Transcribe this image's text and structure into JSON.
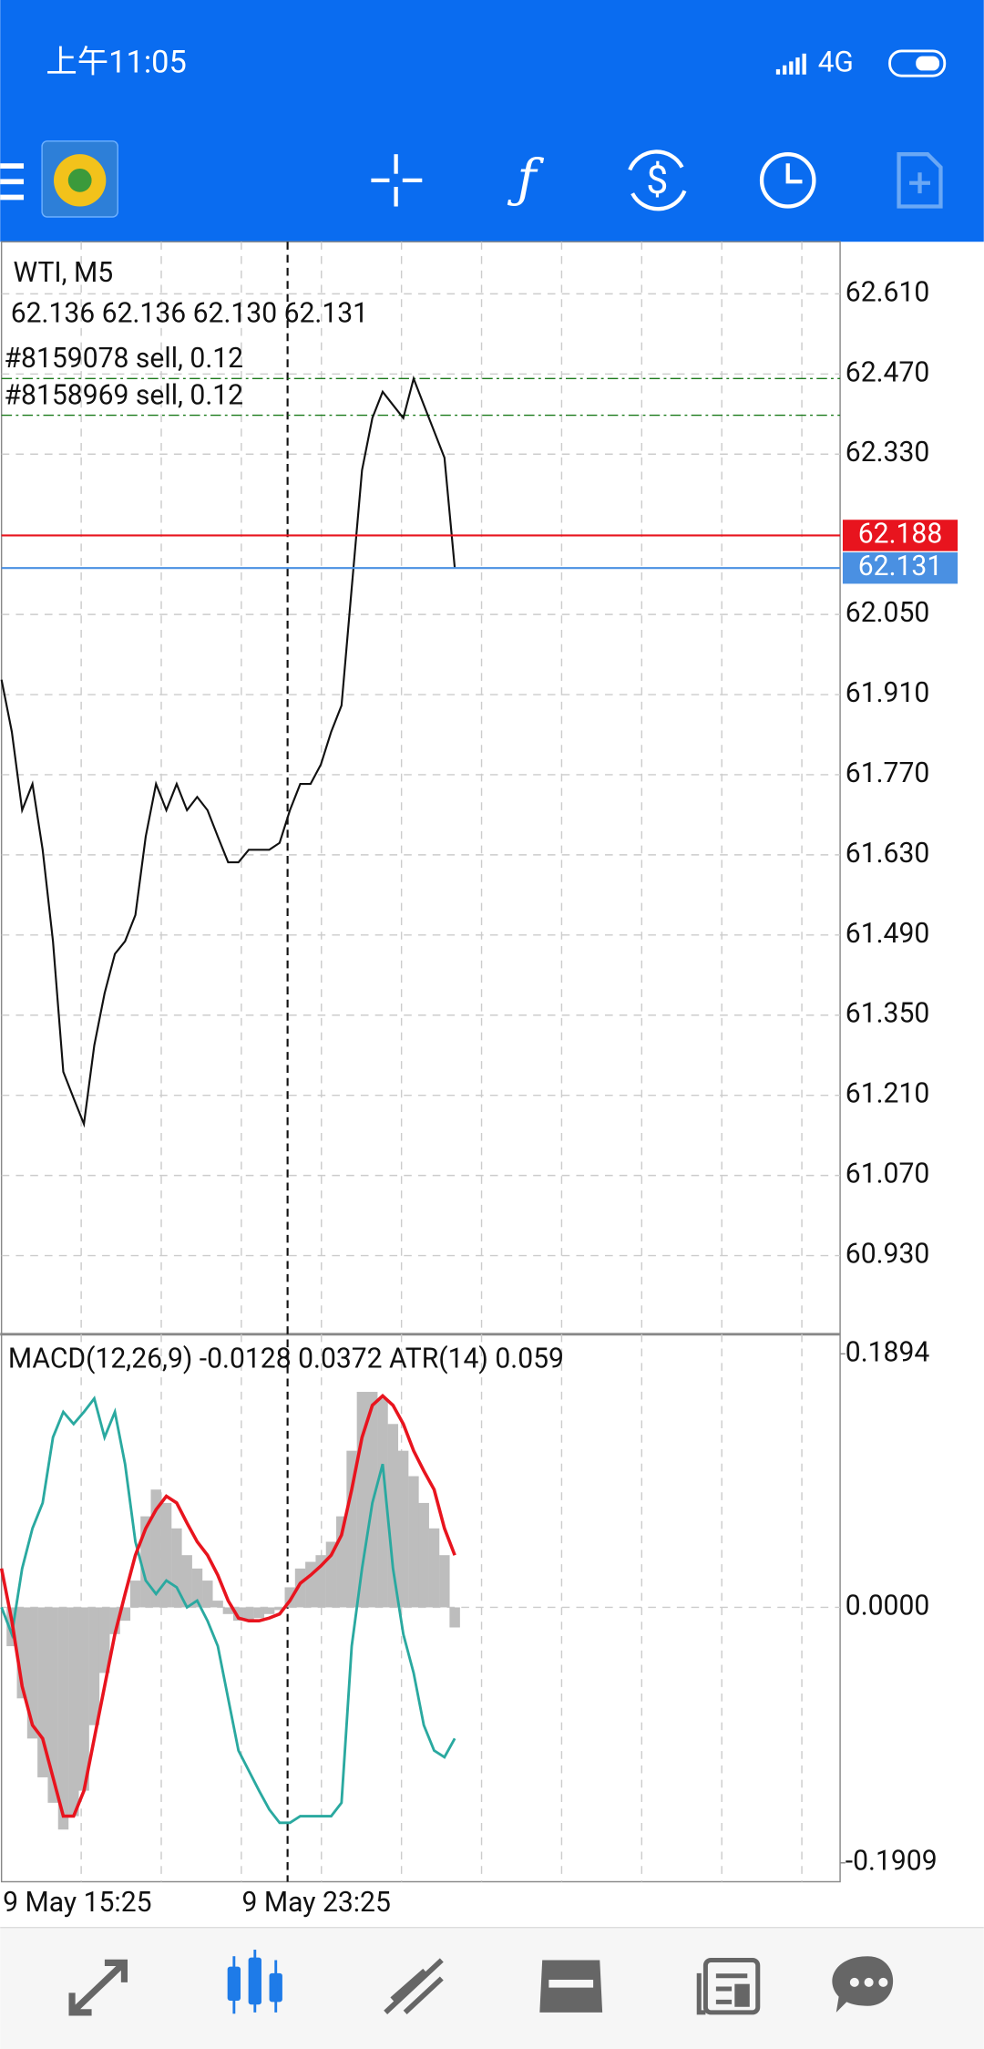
{
  "status_bar": {
    "time": "上午11:05",
    "network": "4G"
  },
  "chart": {
    "symbol": "WTI, M5",
    "ohlc": "62.136 62.136 62.130 62.131",
    "orders": [
      {
        "label": "#8159078 sell, 0.12",
        "price": 62.462
      },
      {
        "label": "#8158969 sell, 0.12",
        "price": 62.398
      }
    ],
    "bid": {
      "value": 62.188,
      "color": "#e8141e"
    },
    "ask": {
      "value": 62.131,
      "color": "#4a90e2"
    },
    "ylim": [
      60.795,
      62.701
    ],
    "yticks": [
      {
        "value": 62.61,
        "label": "62.610"
      },
      {
        "value": 62.47,
        "label": "62.470"
      },
      {
        "value": 62.33,
        "label": "62.330"
      },
      {
        "value": 62.05,
        "label": "62.050"
      },
      {
        "value": 61.91,
        "label": "61.910"
      },
      {
        "value": 61.77,
        "label": "61.770"
      },
      {
        "value": 61.63,
        "label": "61.630"
      },
      {
        "value": 61.49,
        "label": "61.490"
      },
      {
        "value": 61.35,
        "label": "61.350"
      },
      {
        "value": 61.21,
        "label": "61.210"
      },
      {
        "value": 61.07,
        "label": "61.070"
      },
      {
        "value": 60.93,
        "label": "60.930"
      }
    ],
    "close": {
      "color": "#111111",
      "values": [
        61.936,
        61.845,
        61.708,
        61.754,
        61.639,
        61.479,
        61.251,
        61.205,
        61.16,
        61.297,
        61.388,
        61.457,
        61.479,
        61.525,
        61.662,
        61.754,
        61.708,
        61.754,
        61.708,
        61.731,
        61.708,
        61.662,
        61.617,
        61.617,
        61.639,
        61.639,
        61.639,
        61.651,
        61.708,
        61.754,
        61.754,
        61.788,
        61.845,
        61.891,
        62.096,
        62.302,
        62.393,
        62.439,
        62.416,
        62.393,
        62.462,
        62.416,
        62.37,
        62.324,
        62.131
      ]
    },
    "macd_label": "MACD(12,26,9) -0.0128 0.0372 ATR(14) 0.059",
    "macd_ylim": [
      -0.205,
      0.2031
    ],
    "macd_yticks": [
      0.1894,
      {
        "value": 0,
        "label": "0.0000"
      },
      -0.1909
    ],
    "macd_histogram": {
      "color": "#bdbdbd",
      "values": [
        0,
        -0.029,
        -0.068,
        -0.098,
        -0.127,
        -0.146,
        -0.166,
        -0.156,
        -0.137,
        -0.088,
        -0.049,
        -0.02,
        -0.01,
        0.02,
        0.068,
        0.088,
        0.078,
        0.059,
        0.039,
        0.029,
        0.02,
        0.005,
        -0.005,
        -0.01,
        -0.01,
        -0.008,
        -0.005,
        -0.002,
        0.015,
        0.029,
        0.034,
        0.039,
        0.049,
        0.068,
        0.117,
        0.161,
        0.161,
        0.156,
        0.137,
        0.117,
        0.098,
        0.078,
        0.059,
        0.039,
        -0.015
      ]
    },
    "macd_signal": {
      "color": "#e8141e",
      "values": [
        0.029,
        -0.01,
        -0.059,
        -0.088,
        -0.098,
        -0.127,
        -0.156,
        -0.156,
        -0.137,
        -0.098,
        -0.059,
        -0.02,
        0.01,
        0.039,
        0.059,
        0.073,
        0.083,
        0.078,
        0.063,
        0.049,
        0.039,
        0.024,
        0.005,
        -0.008,
        -0.01,
        -0.01,
        -0.008,
        -0.005,
        0.005,
        0.018,
        0.024,
        0.031,
        0.039,
        0.054,
        0.088,
        0.127,
        0.151,
        0.158,
        0.151,
        0.137,
        0.117,
        0.102,
        0.088,
        0.059,
        0.039
      ]
    },
    "atr": {
      "color": "#2aa9a0",
      "values": [
        0,
        -0.02,
        0.029,
        0.059,
        0.078,
        0.127,
        0.146,
        0.137,
        0.146,
        0.156,
        0.127,
        0.146,
        0.107,
        0.049,
        0.02,
        0.01,
        0.02,
        0.015,
        0,
        0.005,
        -0.01,
        -0.029,
        -0.068,
        -0.107,
        -0.122,
        -0.137,
        -0.151,
        -0.161,
        -0.161,
        -0.156,
        -0.156,
        -0.156,
        -0.156,
        -0.146,
        -0.029,
        0.029,
        0.078,
        0.107,
        0.029,
        -0.02,
        -0.049,
        -0.088,
        -0.107,
        -0.112,
        -0.098
      ]
    },
    "time_labels": [
      "9 May 15:25",
      "9 May 23:25"
    ]
  }
}
